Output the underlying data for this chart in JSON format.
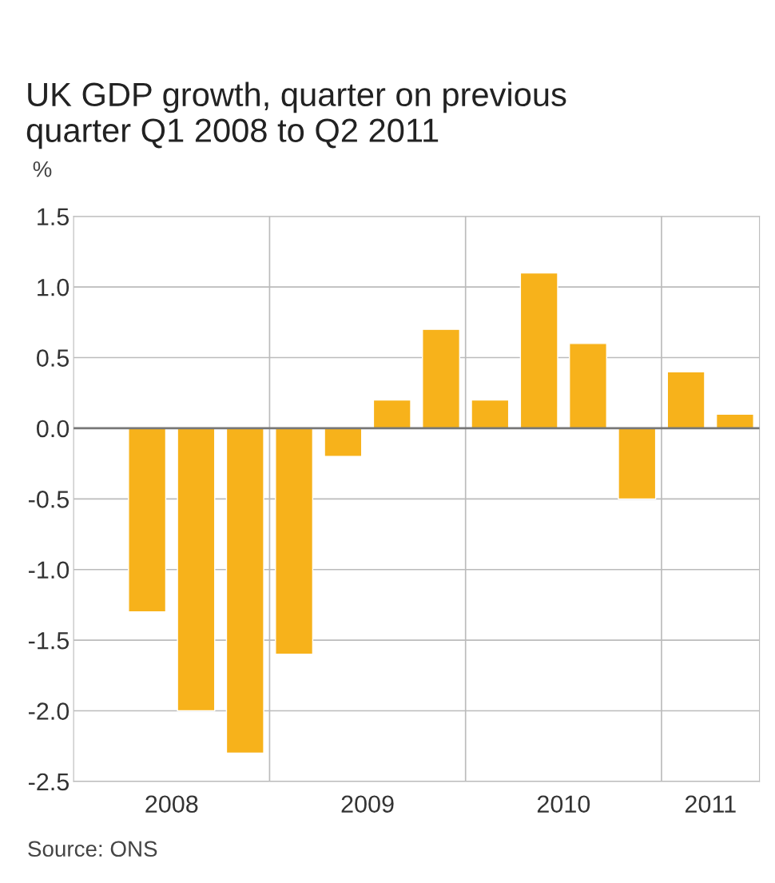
{
  "chart_data": {
    "type": "bar",
    "title": "UK GDP growth, quarter on previous\nquarter Q1 2008 to Q2 2011",
    "ylabel": "%",
    "x": [
      2008.375,
      2008.625,
      2008.875,
      2009.125,
      2009.375,
      2009.625,
      2009.875,
      2010.125,
      2010.375,
      2010.625,
      2010.875,
      2011.125,
      2011.375
    ],
    "values": [
      -1.3,
      -2.0,
      -2.3,
      -1.6,
      -0.2,
      0.2,
      0.7,
      0.2,
      1.1,
      0.6,
      -0.5,
      0.4,
      0.1
    ],
    "color": "#f7b21b",
    "xlim": [
      2008,
      2011.5
    ],
    "xticks": [
      {
        "value": 2008.5,
        "label": "2008"
      },
      {
        "value": 2009,
        "label": null
      },
      {
        "value": 2009.5,
        "label": "2009"
      },
      {
        "value": 2010,
        "label": null
      },
      {
        "value": 2010.5,
        "label": "2010"
      },
      {
        "value": 2011,
        "label": null
      },
      {
        "value": 2011.25,
        "label": "2011"
      }
    ],
    "ylim": [
      -2.5,
      1.5
    ],
    "yticks": [
      {
        "value": 1.5,
        "label": "1.5"
      },
      {
        "value": 1.0,
        "label": "1.0"
      },
      {
        "value": 0.5,
        "label": "0.5"
      },
      {
        "value": 0.0,
        "label": "0.0"
      },
      {
        "value": -0.5,
        "label": "-0.5"
      },
      {
        "value": -1.0,
        "label": "-1.0"
      },
      {
        "value": -1.5,
        "label": "-1.5"
      },
      {
        "value": -2.0,
        "label": "-2.0"
      },
      {
        "value": -2.5,
        "label": "-2.5"
      }
    ],
    "ref_lines": [
      {
        "axis": "y",
        "value": 0,
        "color": "#777777"
      }
    ],
    "grid": true,
    "annotations": [
      "Source: ONS"
    ]
  }
}
